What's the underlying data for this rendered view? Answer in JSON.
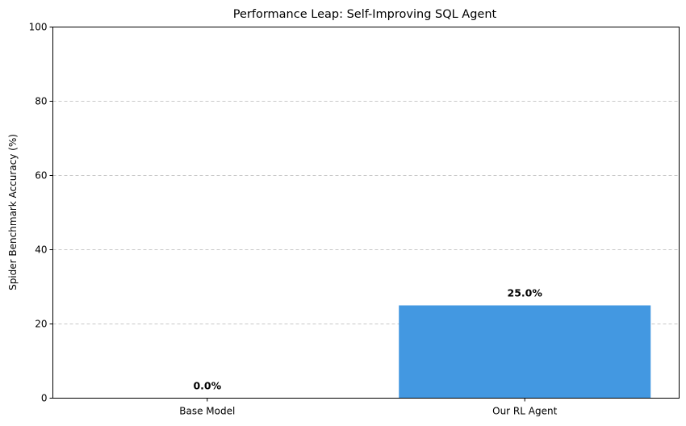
{
  "chart_data": {
    "type": "bar",
    "title": "Performance Leap: Self-Improving SQL Agent",
    "xlabel": "",
    "ylabel": "Spider Benchmark Accuracy (%)",
    "categories": [
      "Base Model",
      "Our RL Agent"
    ],
    "values": [
      0.0,
      25.0
    ],
    "data_labels": [
      "0.0%",
      "25.0%"
    ],
    "ylim": [
      0,
      100
    ],
    "yticks": [
      0,
      20,
      40,
      60,
      80,
      100
    ],
    "ytick_labels": [
      "0",
      "20",
      "40",
      "60",
      "80",
      "100"
    ],
    "grid": "y-dashed",
    "legend": "none",
    "colors": {
      "bar": "#4398e1"
    }
  }
}
